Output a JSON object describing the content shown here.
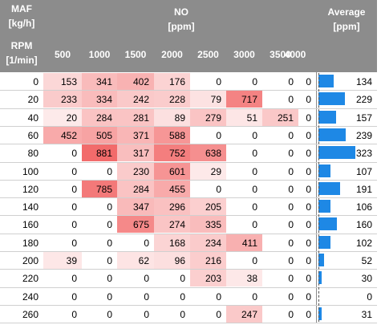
{
  "header": {
    "maf_label": "MAF",
    "maf_unit": "[kg/h]",
    "rpm_label": "RPM",
    "rpm_unit": "[1/min]",
    "no_label": "NO",
    "no_unit": "[ppm]",
    "avg_label": "Average",
    "avg_unit": "[ppm]",
    "maf_columns": [
      "500",
      "1000",
      "1500",
      "2000",
      "2500",
      "3000",
      "3500",
      "4000"
    ]
  },
  "chart_data": {
    "type": "table",
    "max_value": 881,
    "avg_max": 323,
    "heat_color": "#f26b6b",
    "bar_color": "#1e88e5",
    "header_color": "#8c8c8c",
    "rows": [
      {
        "rpm": "0",
        "values": [
          153,
          341,
          402,
          176,
          0,
          0,
          0,
          0
        ],
        "avg": 134
      },
      {
        "rpm": "20",
        "values": [
          233,
          334,
          242,
          228,
          79,
          717,
          0,
          0
        ],
        "avg": 229
      },
      {
        "rpm": "40",
        "values": [
          20,
          284,
          281,
          89,
          279,
          51,
          251,
          0
        ],
        "avg": 157
      },
      {
        "rpm": "60",
        "values": [
          452,
          505,
          371,
          588,
          0,
          0,
          0,
          0
        ],
        "avg": 239
      },
      {
        "rpm": "80",
        "values": [
          0,
          881,
          317,
          752,
          638,
          0,
          0,
          0
        ],
        "avg": 323
      },
      {
        "rpm": "100",
        "values": [
          0,
          0,
          230,
          601,
          29,
          0,
          0,
          0
        ],
        "avg": 107
      },
      {
        "rpm": "120",
        "values": [
          0,
          785,
          284,
          455,
          0,
          0,
          0,
          0
        ],
        "avg": 191
      },
      {
        "rpm": "140",
        "values": [
          0,
          0,
          347,
          296,
          205,
          0,
          0,
          0
        ],
        "avg": 106
      },
      {
        "rpm": "160",
        "values": [
          0,
          0,
          675,
          274,
          335,
          0,
          0,
          0
        ],
        "avg": 160
      },
      {
        "rpm": "180",
        "values": [
          0,
          0,
          0,
          168,
          234,
          411,
          0,
          0
        ],
        "avg": 102
      },
      {
        "rpm": "200",
        "values": [
          39,
          0,
          62,
          96,
          216,
          0,
          0,
          0
        ],
        "avg": 52
      },
      {
        "rpm": "220",
        "values": [
          0,
          0,
          0,
          0,
          203,
          38,
          0,
          0
        ],
        "avg": 30
      },
      {
        "rpm": "240",
        "values": [
          0,
          0,
          0,
          0,
          0,
          0,
          0,
          0
        ],
        "avg": 0
      },
      {
        "rpm": "260",
        "values": [
          0,
          0,
          0,
          0,
          0,
          247,
          0,
          0
        ],
        "avg": 31
      }
    ]
  }
}
